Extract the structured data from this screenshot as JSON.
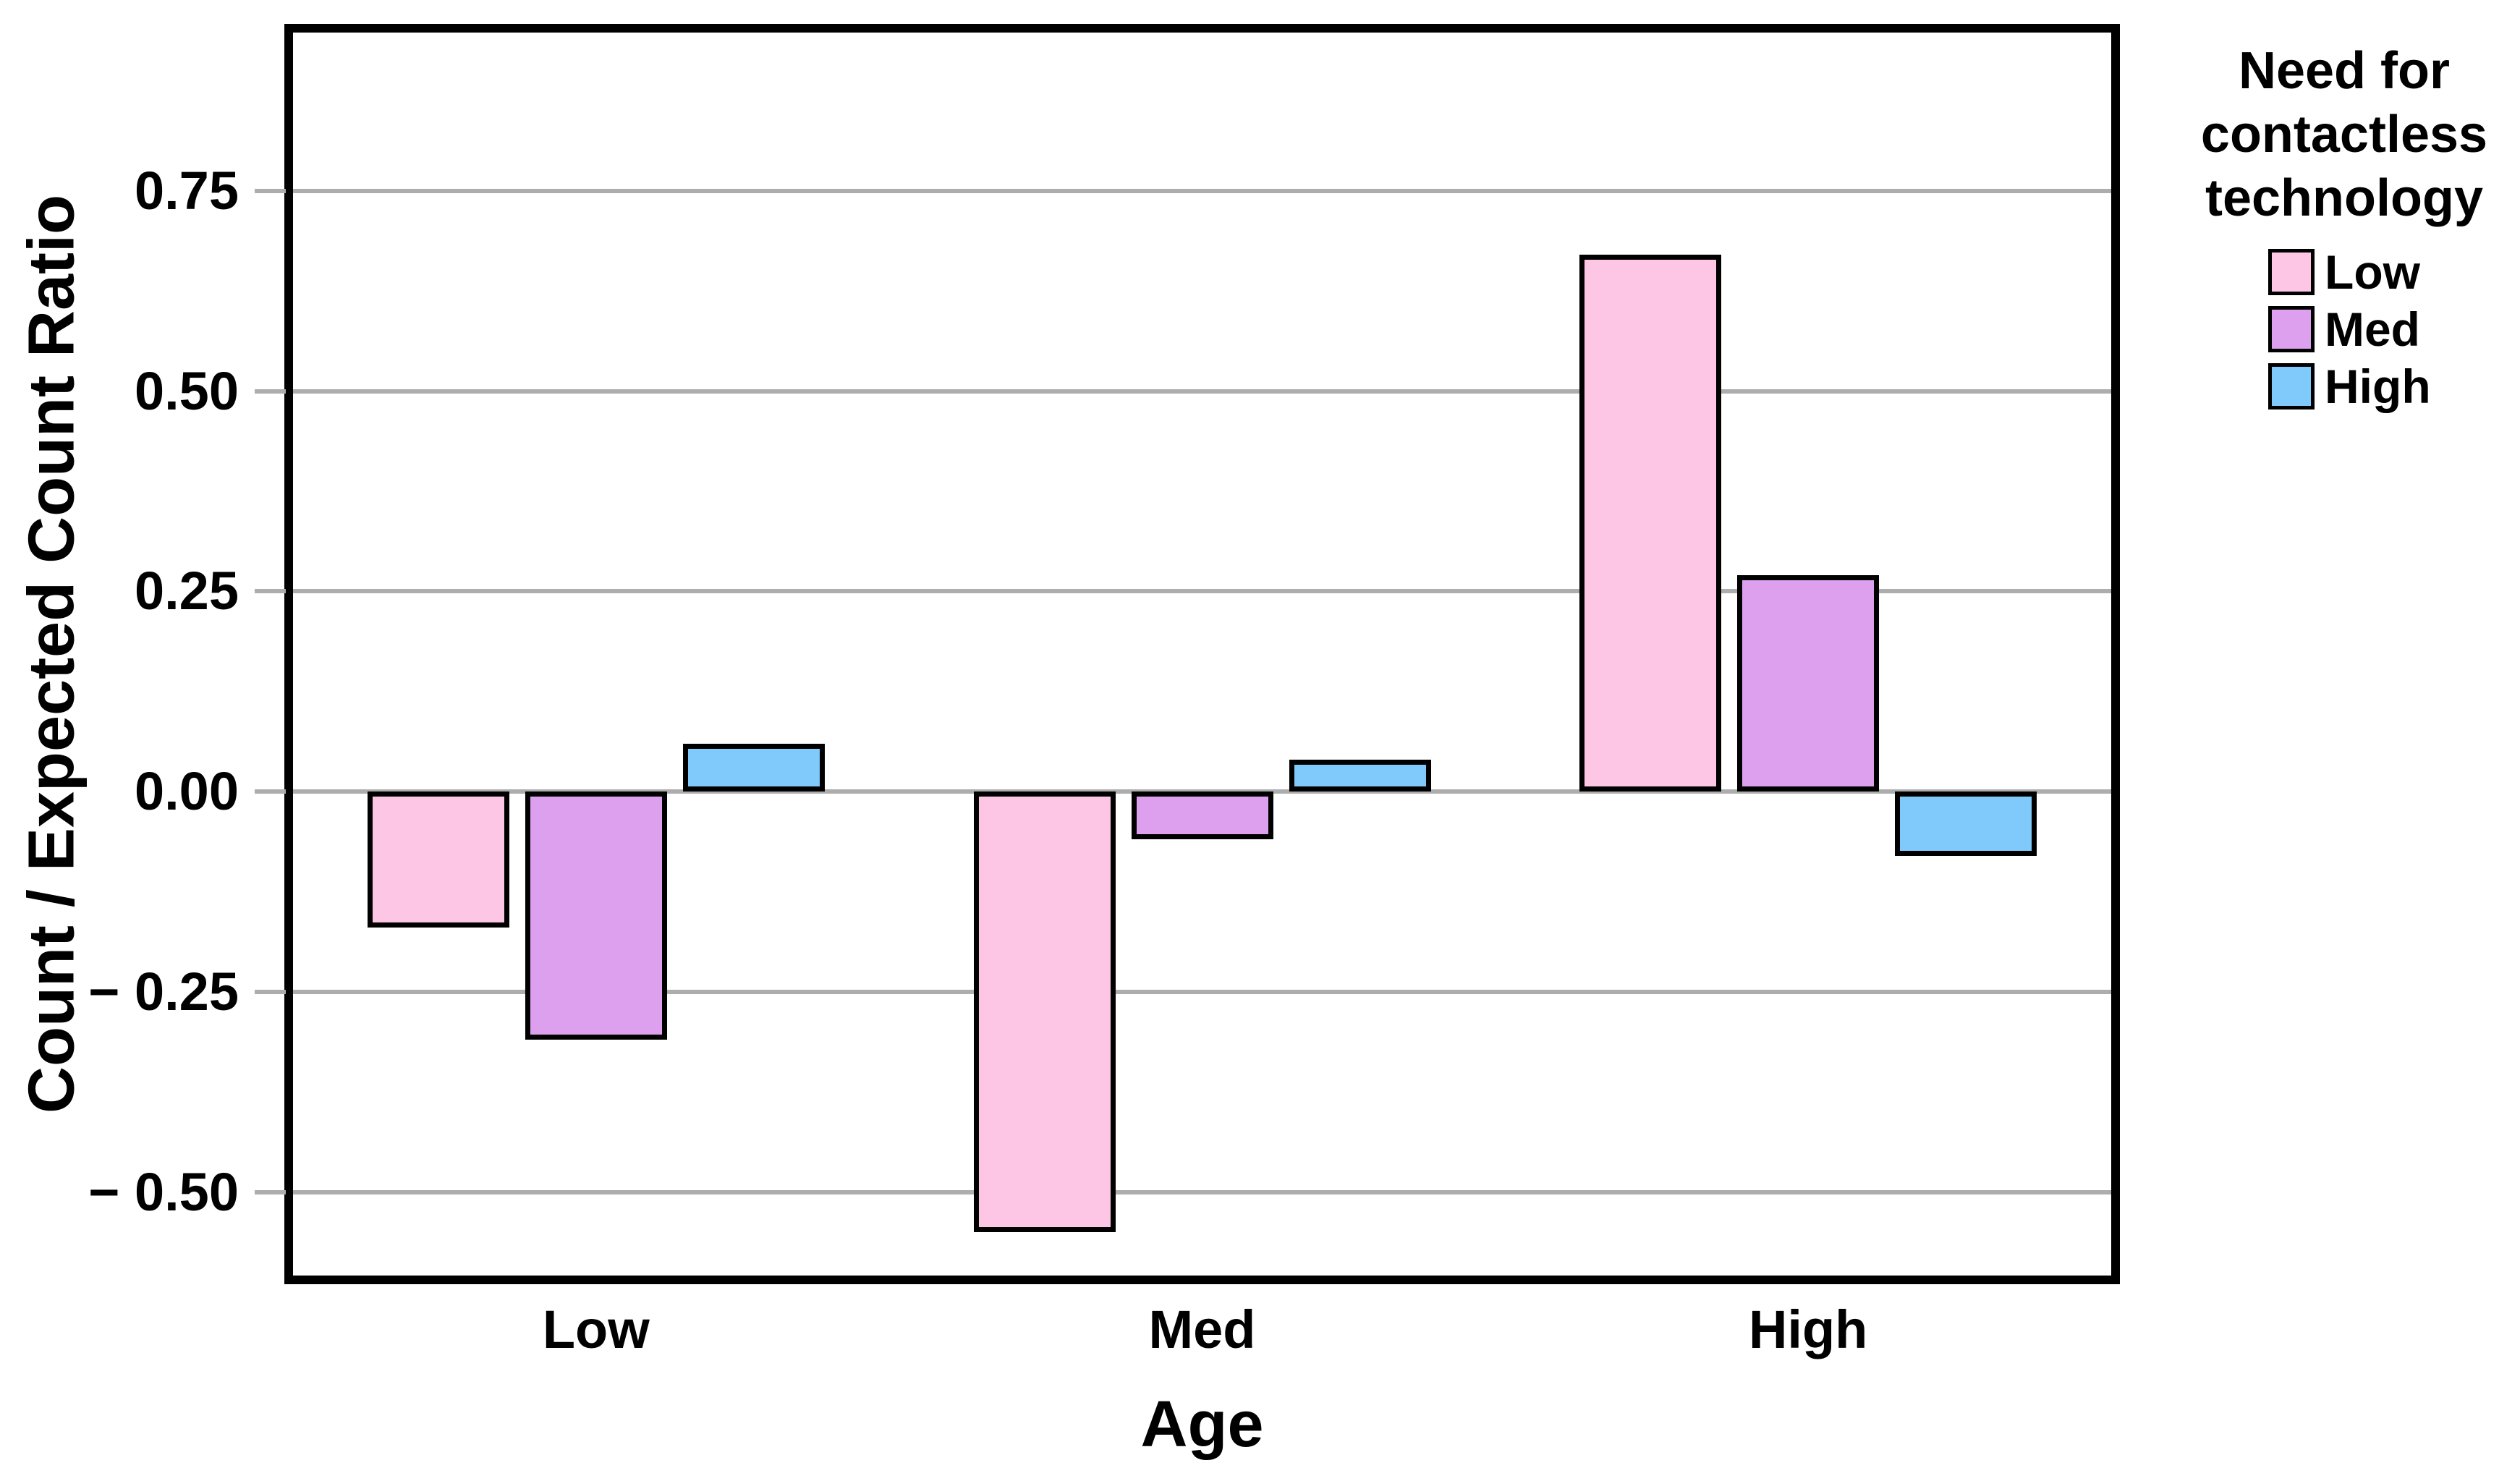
{
  "chart_data": {
    "type": "bar",
    "title": "",
    "categories": [
      "Low",
      "Med",
      "High"
    ],
    "series": [
      {
        "name": "Low",
        "color": "#FCC6E4",
        "values": [
          -0.17,
          -0.55,
          0.67
        ]
      },
      {
        "name": "Med",
        "color": "#DDA0EE",
        "values": [
          -0.31,
          -0.06,
          0.27
        ]
      },
      {
        "name": "High",
        "color": "#7FCAFB",
        "values": [
          0.06,
          0.04,
          -0.08
        ]
      }
    ],
    "xlabel": "Age",
    "ylabel": "Count / Expected Count Ratio",
    "ylim": [
      -0.6,
      0.95
    ],
    "yticks": [
      {
        "value": 0.75,
        "label": "0.75"
      },
      {
        "value": 0.5,
        "label": "0.50"
      },
      {
        "value": 0.25,
        "label": "0.25"
      },
      {
        "value": 0.0,
        "label": "0.00"
      },
      {
        "value": -0.25,
        "label": "− 0.25"
      },
      {
        "value": -0.5,
        "label": "− 0.50"
      }
    ],
    "grid": true,
    "legend": {
      "position": "right",
      "title_lines": [
        "Need for",
        "contactless",
        "technology"
      ],
      "entries": [
        {
          "label": "Low",
          "color": "#FCC6E4"
        },
        {
          "label": "Med",
          "color": "#DDA0EE"
        },
        {
          "label": "High",
          "color": "#7FCAFB"
        }
      ]
    },
    "colors": {
      "gridline": "#ADADAD",
      "axis": "#000000",
      "background": "#FFFFFF",
      "text": "#000000"
    }
  }
}
